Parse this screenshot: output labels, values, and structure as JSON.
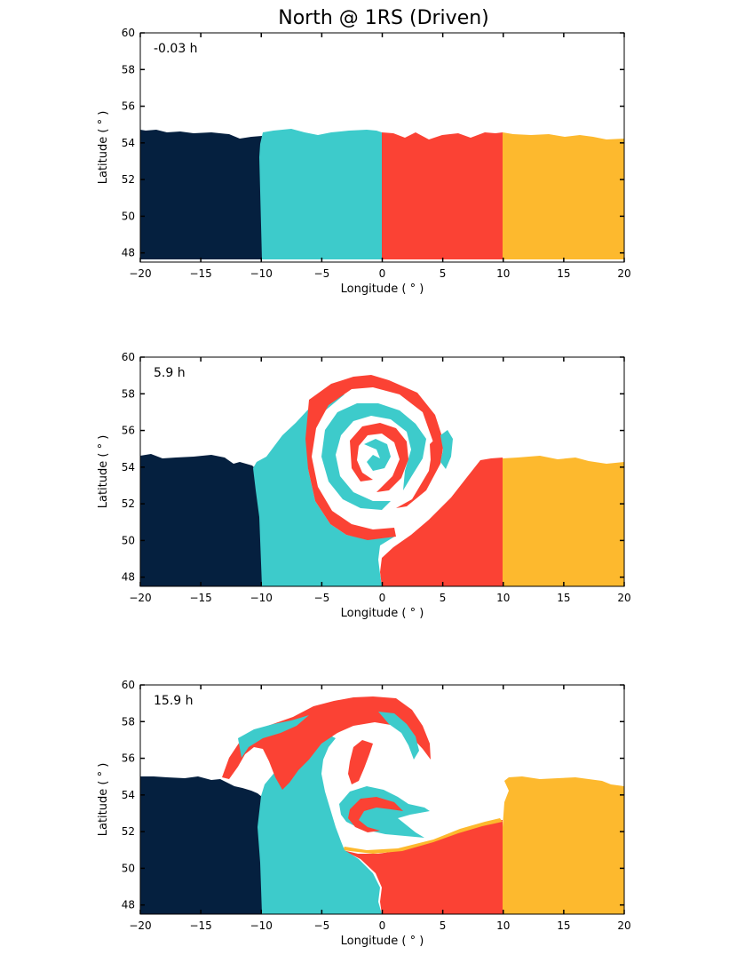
{
  "title": "North @ 1RS (Driven)",
  "colors": {
    "band_1": "#05203f",
    "band_2": "#3dcbcb",
    "band_3": "#fb4234",
    "band_4": "#fdb92e",
    "background": "#ffffff"
  },
  "chart_data": [
    {
      "type": "area",
      "panel_label": "-0.03 h",
      "xlabel": "Longitude ( ° )",
      "ylabel": "Latitude ( ° )",
      "xlim": [
        -20,
        20
      ],
      "ylim": [
        47.5,
        60
      ],
      "xticks": [
        -20,
        -15,
        -10,
        -5,
        0,
        5,
        10,
        15,
        20
      ],
      "yticks": [
        48,
        50,
        52,
        54,
        56,
        58,
        60
      ],
      "grid": false,
      "bands": [
        {
          "color_key": "band_1",
          "x_range": [
            -20,
            -10
          ],
          "top": [
            [
              -20,
              54.6
            ],
            [
              -17,
              54.6
            ],
            [
              -14,
              54.5
            ],
            [
              -12,
              54.3
            ],
            [
              -10,
              54.4
            ]
          ]
        },
        {
          "color_key": "band_2",
          "x_range": [
            -10,
            0
          ],
          "top": [
            [
              -10,
              54.6
            ],
            [
              -7,
              54.6
            ],
            [
              -3,
              54.5
            ],
            [
              0,
              54.5
            ]
          ]
        },
        {
          "color_key": "band_3",
          "x_range": [
            0,
            10
          ],
          "top": [
            [
              0,
              54.5
            ],
            [
              3,
              54.3
            ],
            [
              5,
              54.5
            ],
            [
              7,
              54.4
            ],
            [
              10,
              54.5
            ]
          ]
        },
        {
          "color_key": "band_4",
          "x_range": [
            10,
            20
          ],
          "top": [
            [
              10,
              54.5
            ],
            [
              14,
              54.4
            ],
            [
              17,
              54.3
            ],
            [
              20,
              54.2
            ]
          ]
        }
      ]
    },
    {
      "type": "area",
      "panel_label": "5.9 h",
      "xlabel": "Longitude ( ° )",
      "ylabel": "Latitude ( ° )",
      "xlim": [
        -20,
        20
      ],
      "ylim": [
        47.5,
        60
      ],
      "xticks": [
        -20,
        -15,
        -10,
        -5,
        0,
        5,
        10,
        15,
        20
      ],
      "yticks": [
        48,
        50,
        52,
        54,
        56,
        58,
        60
      ],
      "grid": false,
      "bands": [
        {
          "color_key": "band_1",
          "x_range": [
            -20,
            -10
          ],
          "top": [
            [
              -20,
              54.8
            ],
            [
              -16,
              54.7
            ],
            [
              -12,
              54.5
            ],
            [
              -10,
              54.0
            ]
          ]
        },
        {
          "color_key": "band_4",
          "x_range": [
            10,
            20
          ],
          "top": [
            [
              10,
              54.5
            ],
            [
              14,
              54.5
            ],
            [
              17,
              54.3
            ],
            [
              20,
              54.3
            ]
          ]
        }
      ],
      "vortex_front": [
        [
          -10,
          53.8
        ],
        [
          -9,
          54.6
        ],
        [
          -7,
          55.6
        ],
        [
          -5,
          56.8
        ],
        [
          -3,
          58.3
        ],
        [
          -1,
          58.9
        ],
        [
          1,
          58.8
        ],
        [
          3,
          58.1
        ],
        [
          5,
          56.8
        ],
        [
          6,
          55.1
        ],
        [
          6.8,
          54.3
        ],
        [
          8,
          54.2
        ],
        [
          10,
          54.3
        ]
      ]
    },
    {
      "type": "area",
      "panel_label": "15.9 h",
      "xlabel": "Longitude ( ° )",
      "ylabel": "Latitude ( ° )",
      "xlim": [
        -20,
        20
      ],
      "ylim": [
        47.5,
        60
      ],
      "xticks": [
        -20,
        -15,
        -10,
        -5,
        0,
        5,
        10,
        15,
        20
      ],
      "yticks": [
        48,
        50,
        52,
        54,
        56,
        58,
        60
      ],
      "grid": false,
      "bands": [
        {
          "color_key": "band_1",
          "x_range": [
            -20,
            -10
          ],
          "top": [
            [
              -20,
              55.0
            ],
            [
              -16,
              55.0
            ],
            [
              -13,
              54.8
            ],
            [
              -11,
              54.6
            ],
            [
              -10,
              54.3
            ]
          ]
        },
        {
          "color_key": "band_4",
          "x_range": [
            10,
            20
          ],
          "top": [
            [
              10,
              51.8
            ],
            [
              10.5,
              54.2
            ],
            [
              10,
              54.7
            ],
            [
              13,
              54.8
            ],
            [
              17,
              54.6
            ],
            [
              20,
              54.5
            ]
          ]
        }
      ],
      "vortex_front": [
        [
          -13,
          54.8
        ],
        [
          -12,
          56.2
        ],
        [
          -10,
          57.4
        ],
        [
          -7,
          58.0
        ],
        [
          -4,
          58.9
        ],
        [
          -2,
          59.3
        ],
        [
          0,
          59.3
        ],
        [
          2,
          58.8
        ],
        [
          4,
          57.3
        ],
        [
          4.5,
          55.0
        ],
        [
          7,
          52.6
        ],
        [
          10,
          52.5
        ]
      ]
    }
  ]
}
